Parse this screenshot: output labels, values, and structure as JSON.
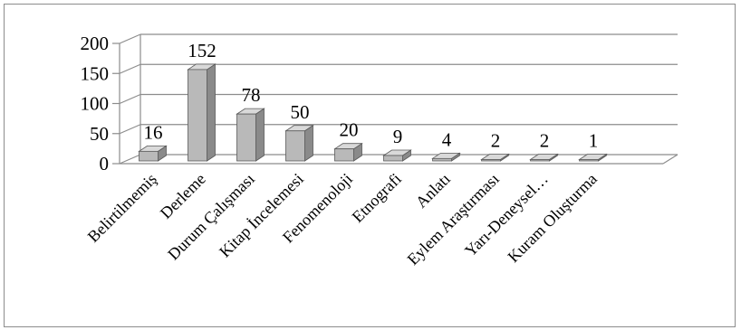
{
  "chart_data": {
    "type": "bar",
    "style": "3d-column",
    "title": "",
    "xlabel": "",
    "ylabel": "",
    "ylim": [
      0,
      200
    ],
    "yticks": [
      0,
      50,
      100,
      150,
      200
    ],
    "grid": true,
    "legend": "none",
    "categories": [
      "Belirtilmemiş",
      "Derleme",
      "Durum Çalışması",
      "Kitap İncelemesi",
      "Fenomenoloji",
      "Etnografi",
      "Anlatı",
      "Eylem Araştırması",
      "Yarı-Deneysel…",
      "Kuram Oluşturma"
    ],
    "values": [
      16,
      152,
      78,
      50,
      20,
      9,
      4,
      2,
      2,
      1
    ],
    "colors": {
      "bar_front": "#b9b9b9",
      "bar_side": "#8a8a8a",
      "bar_top": "#d9d9d9",
      "bar_edge": "#5a5a5a",
      "grid": "#8c8c8c",
      "frame": "#8c8c8c"
    }
  }
}
